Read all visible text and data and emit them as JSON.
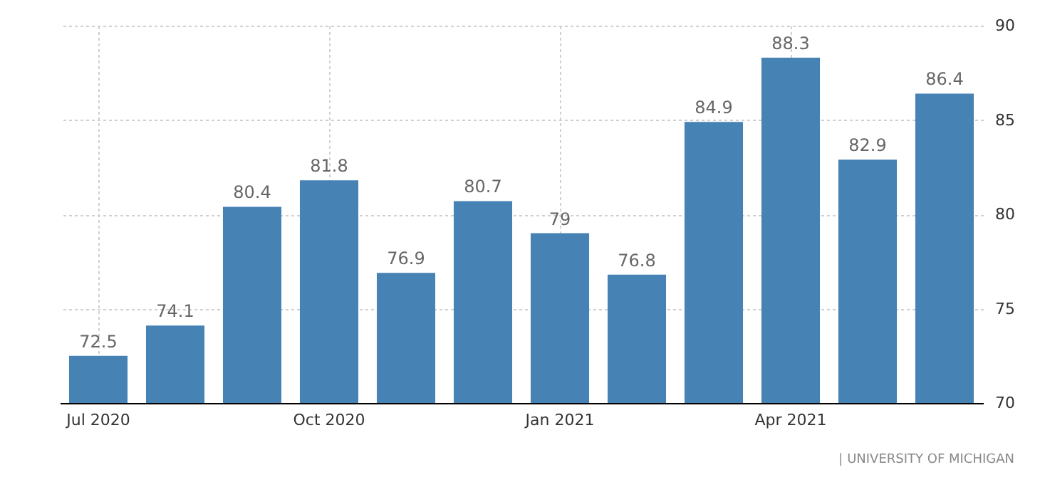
{
  "chart_data": {
    "type": "bar",
    "categories": [
      "Jul 2020",
      null,
      null,
      "Oct 2020",
      null,
      null,
      "Jan 2021",
      null,
      null,
      "Apr 2021",
      null,
      null
    ],
    "values": [
      72.5,
      74.1,
      80.4,
      81.8,
      76.9,
      80.7,
      79,
      76.8,
      84.9,
      88.3,
      82.9,
      86.4
    ],
    "color": "#4682b4",
    "ylim": [
      70,
      90
    ],
    "yticks": [
      70,
      75,
      80,
      85,
      90
    ],
    "grid": true,
    "data_labels": true,
    "annotations": [
      "| UNIVERSITY OF MICHIGAN"
    ]
  }
}
